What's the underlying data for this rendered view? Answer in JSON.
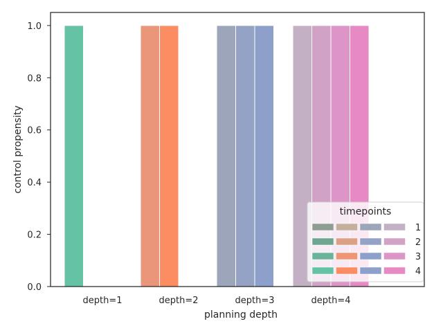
{
  "chart_data": {
    "type": "bar",
    "categories": [
      "depth=1",
      "depth=2",
      "depth=3",
      "depth=4"
    ],
    "xlabel": "planning depth",
    "ylabel": "control propensity",
    "ylim": [
      0,
      1.05
    ],
    "yticks": [
      "0.0",
      "0.2",
      "0.4",
      "0.6",
      "0.8",
      "1.0"
    ],
    "grid": false,
    "legend": {
      "title": "timepoints",
      "placement": "lower-right",
      "entries": [
        "1",
        "2",
        "3",
        "4"
      ]
    },
    "groups": [
      {
        "category": "depth=1",
        "timepoints": [
          {
            "timepoint": "1",
            "value": 1.0,
            "color": "#66c2a5"
          }
        ]
      },
      {
        "category": "depth=2",
        "timepoints": [
          {
            "timepoint": "1",
            "value": 1.0,
            "color": "#e9967a"
          },
          {
            "timepoint": "2",
            "value": 1.0,
            "color": "#fc8d62"
          }
        ]
      },
      {
        "category": "depth=3",
        "timepoints": [
          {
            "timepoint": "1",
            "value": 1.0,
            "color": "#9ca5b9"
          },
          {
            "timepoint": "2",
            "value": 1.0,
            "color": "#94a2c6"
          },
          {
            "timepoint": "3",
            "value": 1.0,
            "color": "#8da0cb"
          }
        ]
      },
      {
        "category": "depth=4",
        "timepoints": [
          {
            "timepoint": "1",
            "value": 1.0,
            "color": "#c4b0c4"
          },
          {
            "timepoint": "2",
            "value": 1.0,
            "color": "#d2a2c6"
          },
          {
            "timepoint": "3",
            "value": 1.0,
            "color": "#dd95c8"
          },
          {
            "timepoint": "4",
            "value": 1.0,
            "color": "#e78ac3"
          }
        ]
      }
    ],
    "legend_swatches": [
      [
        "#8f9d93",
        "#c4ae9d",
        "#9ca5b9",
        "#c4b0c4"
      ],
      [
        "#6ea591",
        "#dba185",
        "#94a2c6",
        "#d2a2c6"
      ],
      [
        "#6ab49b",
        "#ee9674",
        "#8da0cb",
        "#dd95c8"
      ],
      [
        "#66c2a5",
        "#fc8d62",
        "#8da0cb",
        "#e78ac3"
      ]
    ]
  }
}
